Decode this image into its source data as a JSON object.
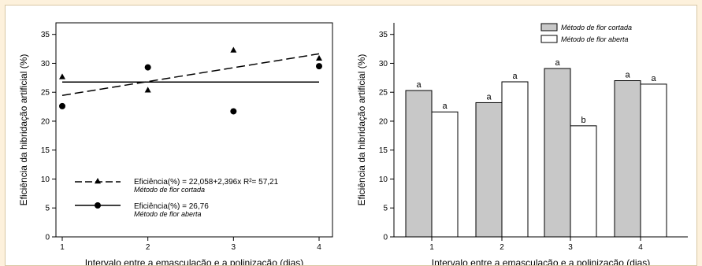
{
  "chart_data": [
    {
      "type": "scatter",
      "xlabel": "Intervalo entre a emasculação e a polinização (dias)",
      "ylabel": "Eficiência da hibridação artificial (%)",
      "xlim": [
        1,
        4
      ],
      "ylim": [
        0,
        37
      ],
      "xticks": [
        "1",
        "2",
        "3",
        "4"
      ],
      "yticks": [
        "0",
        "5",
        "10",
        "15",
        "20",
        "25",
        "30",
        "35"
      ],
      "grid": false,
      "series": [
        {
          "name": "Método de flor cortada",
          "marker": "triangle",
          "x": [
            1,
            2,
            3,
            4
          ],
          "y": [
            27.7,
            25.4,
            32.3,
            30.9
          ],
          "fit": {
            "type": "linear",
            "intercept": 22.058,
            "slope": 2.396,
            "style": "dashed"
          }
        },
        {
          "name": "Método de flor aberta",
          "marker": "circle",
          "x": [
            1,
            2,
            3,
            4
          ],
          "y": [
            22.6,
            29.3,
            21.7,
            29.5
          ],
          "fit": {
            "type": "constant",
            "value": 26.76,
            "style": "solid"
          }
        }
      ],
      "legend": [
        {
          "equation": "Eficiência(%) = 22,058+2,396x R²= 57,21",
          "method": "Método de flor cortada"
        },
        {
          "equation": "Eficiência(%) = 26,76",
          "method": "Método de flor aberta"
        }
      ],
      "legend_placement": "bottom-left"
    },
    {
      "type": "bar",
      "xlabel": "Intervalo entre a emasculação e a polinização (dias)",
      "ylabel": "Eficiência da hibridação artificial (%)",
      "ylim": [
        0,
        37
      ],
      "categories": [
        "1",
        "2",
        "3",
        "4"
      ],
      "yticks": [
        "0",
        "5",
        "10",
        "15",
        "20",
        "25",
        "30",
        "35"
      ],
      "grid": false,
      "series": [
        {
          "name": "Método de flor cortada",
          "color": "#c8c8c8",
          "values": [
            25.3,
            23.2,
            29.1,
            27.0
          ],
          "letters": [
            "a",
            "a",
            "a",
            "a"
          ]
        },
        {
          "name": "Método de flor aberta",
          "color": "#ffffff",
          "values": [
            21.6,
            26.8,
            19.2,
            26.4
          ],
          "letters": [
            "a",
            "a",
            "b",
            "a"
          ]
        }
      ],
      "legend_placement": "top-right"
    }
  ]
}
